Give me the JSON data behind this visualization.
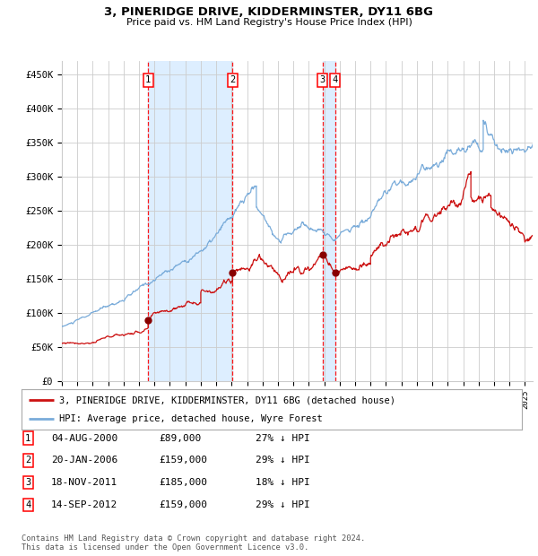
{
  "title": "3, PINERIDGE DRIVE, KIDDERMINSTER, DY11 6BG",
  "subtitle": "Price paid vs. HM Land Registry's House Price Index (HPI)",
  "ylim": [
    0,
    470000
  ],
  "yticks": [
    0,
    50000,
    100000,
    150000,
    200000,
    250000,
    300000,
    350000,
    400000,
    450000
  ],
  "ytick_labels": [
    "£0",
    "£50K",
    "£100K",
    "£150K",
    "£200K",
    "£250K",
    "£300K",
    "£350K",
    "£400K",
    "£450K"
  ],
  "hpi_color": "#7aacda",
  "price_color": "#cc1111",
  "sale_marker_color": "#880000",
  "bg_color": "#ffffff",
  "grid_color": "#cccccc",
  "shade_color": "#ddeeff",
  "sales": [
    {
      "date_num": 2000.585,
      "price": 89000,
      "label": "1"
    },
    {
      "date_num": 2006.055,
      "price": 159000,
      "label": "2"
    },
    {
      "date_num": 2011.88,
      "price": 185000,
      "label": "3"
    },
    {
      "date_num": 2012.712,
      "price": 159000,
      "label": "4"
    }
  ],
  "sale_shade_ranges": [
    [
      2000.585,
      2006.055
    ],
    [
      2011.88,
      2012.712
    ]
  ],
  "legend_entries": [
    "3, PINERIDGE DRIVE, KIDDERMINSTER, DY11 6BG (detached house)",
    "HPI: Average price, detached house, Wyre Forest"
  ],
  "table_entries": [
    {
      "num": "1",
      "date": "04-AUG-2000",
      "price": "£89,000",
      "hpi": "27% ↓ HPI"
    },
    {
      "num": "2",
      "date": "20-JAN-2006",
      "price": "£159,000",
      "hpi": "29% ↓ HPI"
    },
    {
      "num": "3",
      "date": "18-NOV-2011",
      "price": "£185,000",
      "hpi": "18% ↓ HPI"
    },
    {
      "num": "4",
      "date": "14-SEP-2012",
      "price": "£159,000",
      "hpi": "29% ↓ HPI"
    }
  ],
  "footnote": "Contains HM Land Registry data © Crown copyright and database right 2024.\nThis data is licensed under the Open Government Licence v3.0.",
  "xmin": 1995.0,
  "xmax": 2025.5
}
